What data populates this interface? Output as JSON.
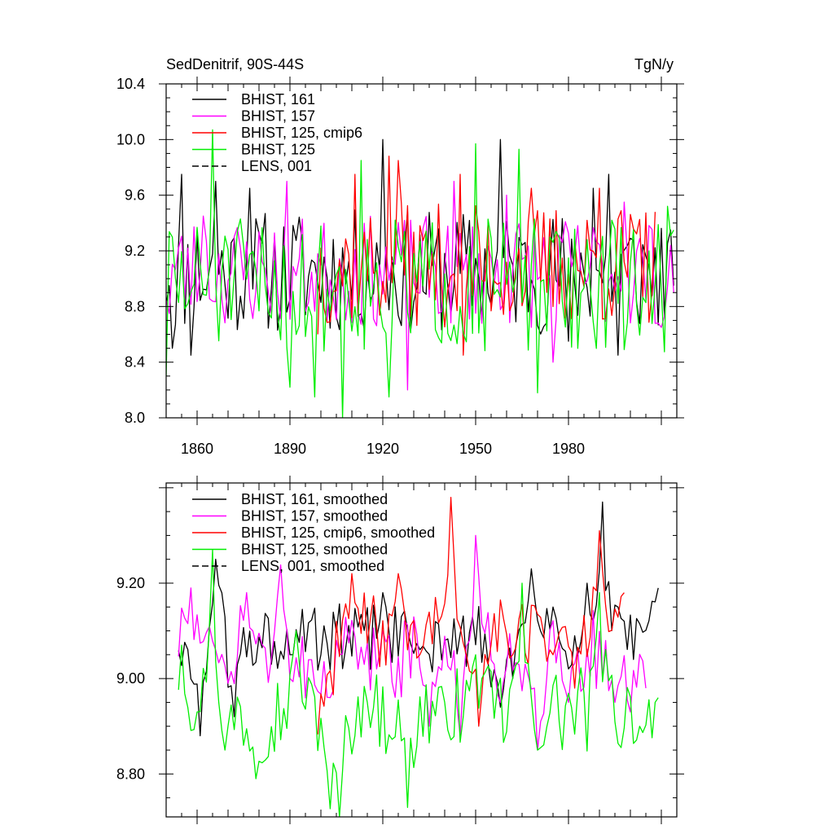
{
  "chart_data": [
    {
      "type": "line",
      "title_left": "SedDenitrif, 90S-44S",
      "title_right": "TgN/y",
      "xlim": [
        1850,
        2015
      ],
      "ylim": [
        8.0,
        10.4
      ],
      "x_tick_labels": [
        {
          "value": 1860,
          "label": "1860"
        },
        {
          "value": 1890,
          "label": "1890"
        },
        {
          "value": 1920,
          "label": "1920"
        },
        {
          "value": 1950,
          "label": "1950"
        },
        {
          "value": 1980,
          "label": "1980"
        }
      ],
      "y_tick_labels": [
        {
          "value": 8.0,
          "label": "8.0"
        },
        {
          "value": 8.4,
          "label": "8.4"
        },
        {
          "value": 8.8,
          "label": "8.8"
        },
        {
          "value": 9.2,
          "label": "9.2"
        },
        {
          "value": 9.6,
          "label": "9.6"
        },
        {
          "value": 10.0,
          "label": "10.0"
        },
        {
          "value": 10.4,
          "label": "10.4"
        }
      ],
      "series": [
        {
          "name": "BHIST, 161",
          "color": "#000000",
          "dash": "",
          "x_start": 1850,
          "x_end": 2014,
          "center": 9.05,
          "spread": 0.28,
          "seed": 11,
          "anchors": [
            [
              1851,
              8.95
            ],
            [
              1852,
              8.5
            ],
            [
              1855,
              9.75
            ],
            [
              1858,
              8.45
            ],
            [
              1866,
              9.7
            ],
            [
              1877,
              9.65
            ],
            [
              1920,
              10.0
            ],
            [
              1958,
              10.0
            ],
            [
              1980,
              8.55
            ],
            [
              1988,
              9.65
            ],
            [
              1993,
              9.75
            ],
            [
              1996,
              8.45
            ],
            [
              2013,
              9.35
            ],
            [
              2014,
              8.95
            ]
          ]
        },
        {
          "name": "BHIST, 157",
          "color": "#ff00ff",
          "dash": "",
          "x_start": 1850,
          "x_end": 2014,
          "center": 9.05,
          "spread": 0.25,
          "seed": 23,
          "anchors": [
            [
              1851,
              8.75
            ],
            [
              1862,
              9.45
            ],
            [
              1889,
              9.7
            ],
            [
              1928,
              8.2
            ],
            [
              1943,
              9.7
            ],
            [
              1960,
              9.6
            ],
            [
              1975,
              8.4
            ],
            [
              1998,
              9.55
            ],
            [
              2010,
              8.65
            ]
          ]
        },
        {
          "name": "BHIST, 125, cmip6",
          "color": "#ff0000",
          "dash": "",
          "x_start": 1899,
          "x_end": 2008,
          "center": 9.1,
          "spread": 0.28,
          "seed": 37,
          "anchors": [
            [
              1899,
              8.6
            ],
            [
              1911,
              9.75
            ],
            [
              1922,
              9.88
            ],
            [
              1925,
              9.85
            ],
            [
              1945,
              9.75
            ],
            [
              1946,
              8.45
            ],
            [
              1968,
              9.65
            ],
            [
              1990,
              9.65
            ],
            [
              2008,
              9.48
            ]
          ]
        },
        {
          "name": "BHIST, 125",
          "color": "#00ee00",
          "dash": "",
          "x_start": 1850,
          "x_end": 2014,
          "center": 8.95,
          "spread": 0.3,
          "seed": 51,
          "anchors": [
            [
              1850,
              8.3
            ],
            [
              1852,
              9.3
            ],
            [
              1865,
              10.07
            ],
            [
              1890,
              8.22
            ],
            [
              1898,
              8.15
            ],
            [
              1907,
              8.0
            ],
            [
              1913,
              9.85
            ],
            [
              1922,
              8.15
            ],
            [
              1950,
              9.97
            ],
            [
              1964,
              9.93
            ],
            [
              1970,
              8.18
            ],
            [
              2012,
              9.52
            ],
            [
              2014,
              9.35
            ]
          ]
        },
        {
          "name": "LENS, 001",
          "color": "#000000",
          "dash": "8 4",
          "legend_only": true
        }
      ]
    },
    {
      "type": "line",
      "xlim": [
        1850,
        2015
      ],
      "ylim": [
        8.71,
        9.41
      ],
      "y_tick_labels": [
        {
          "value": 8.8,
          "label": "8.80"
        },
        {
          "value": 9.0,
          "label": "9.00"
        },
        {
          "value": 9.2,
          "label": "9.20"
        }
      ],
      "series": [
        {
          "name": "BHIST, 161, smoothed",
          "color": "#000000",
          "dash": "",
          "x_start": 1854,
          "x_end": 2009,
          "center": 9.08,
          "spread": 0.05,
          "seed": 61,
          "anchors": [
            [
              1854,
              9.1
            ],
            [
              1855,
              8.97
            ],
            [
              1856,
              9.1
            ],
            [
              1858,
              9.02
            ],
            [
              1861,
              8.88
            ],
            [
              1866,
              9.25
            ],
            [
              1872,
              8.92
            ],
            [
              1890,
              9.05
            ],
            [
              1920,
              9.18
            ],
            [
              1940,
              9.08
            ],
            [
              1955,
              8.99
            ],
            [
              1958,
              8.94
            ],
            [
              1962,
              9.0
            ],
            [
              1968,
              9.23
            ],
            [
              1975,
              9.15
            ],
            [
              1980,
              9.02
            ],
            [
              1986,
              9.2
            ],
            [
              1991,
              9.37
            ],
            [
              1996,
              9.15
            ],
            [
              2003,
              9.13
            ],
            [
              2005,
              9.08
            ],
            [
              2007,
              9.15
            ],
            [
              2009,
              9.19
            ]
          ]
        },
        {
          "name": "BHIST, 157, smoothed",
          "color": "#ff00ff",
          "dash": "",
          "x_start": 1854,
          "x_end": 2005,
          "center": 9.05,
          "spread": 0.06,
          "seed": 73,
          "anchors": [
            [
              1854,
              8.97
            ],
            [
              1855,
              9.14
            ],
            [
              1858,
              9.19
            ],
            [
              1866,
              9.06
            ],
            [
              1870,
              8.99
            ],
            [
              1876,
              9.18
            ],
            [
              1887,
              9.28
            ],
            [
              1890,
              9.0
            ],
            [
              1903,
              8.96
            ],
            [
              1920,
              9.1
            ],
            [
              1935,
              8.9
            ],
            [
              1945,
              8.88
            ],
            [
              1950,
              9.3
            ],
            [
              1958,
              8.95
            ],
            [
              1970,
              8.85
            ],
            [
              1980,
              8.95
            ],
            [
              1995,
              8.95
            ],
            [
              2000,
              8.93
            ],
            [
              2005,
              8.98
            ]
          ]
        },
        {
          "name": "BHIST, 125, cmip6, smoothed",
          "color": "#ff0000",
          "dash": "",
          "x_start": 1899,
          "x_end": 1998,
          "center": 9.1,
          "spread": 0.05,
          "seed": 89,
          "anchors": [
            [
              1899,
              8.85
            ],
            [
              1901,
              8.96
            ],
            [
              1904,
              8.84
            ],
            [
              1905,
              9.12
            ],
            [
              1910,
              9.22
            ],
            [
              1925,
              9.22
            ],
            [
              1932,
              9.05
            ],
            [
              1942,
              9.38
            ],
            [
              1947,
              9.05
            ],
            [
              1951,
              8.9
            ],
            [
              1962,
              9.05
            ],
            [
              1975,
              9.05
            ],
            [
              1982,
              8.98
            ],
            [
              1990,
              9.31
            ],
            [
              1995,
              9.14
            ],
            [
              1998,
              9.18
            ]
          ]
        },
        {
          "name": "BHIST, 125, smoothed",
          "color": "#00ee00",
          "dash": "",
          "x_start": 1854,
          "x_end": 2009,
          "center": 8.93,
          "spread": 0.06,
          "seed": 97,
          "anchors": [
            [
              1854,
              8.9
            ],
            [
              1855,
              9.07
            ],
            [
              1860,
              8.93
            ],
            [
              1865,
              9.27
            ],
            [
              1869,
              8.85
            ],
            [
              1879,
              8.79
            ],
            [
              1892,
              9.1
            ],
            [
              1903,
              8.73
            ],
            [
              1906,
              8.71
            ],
            [
              1915,
              8.95
            ],
            [
              1928,
              8.73
            ],
            [
              1940,
              8.95
            ],
            [
              1950,
              9.05
            ],
            [
              1965,
              9.2
            ],
            [
              1970,
              8.85
            ],
            [
              1990,
              9.18
            ],
            [
              2003,
              8.9
            ],
            [
              2009,
              8.96
            ]
          ]
        },
        {
          "name": "LENS, 001, smoothed",
          "color": "#000000",
          "dash": "8 4",
          "legend_only": true
        }
      ]
    }
  ]
}
